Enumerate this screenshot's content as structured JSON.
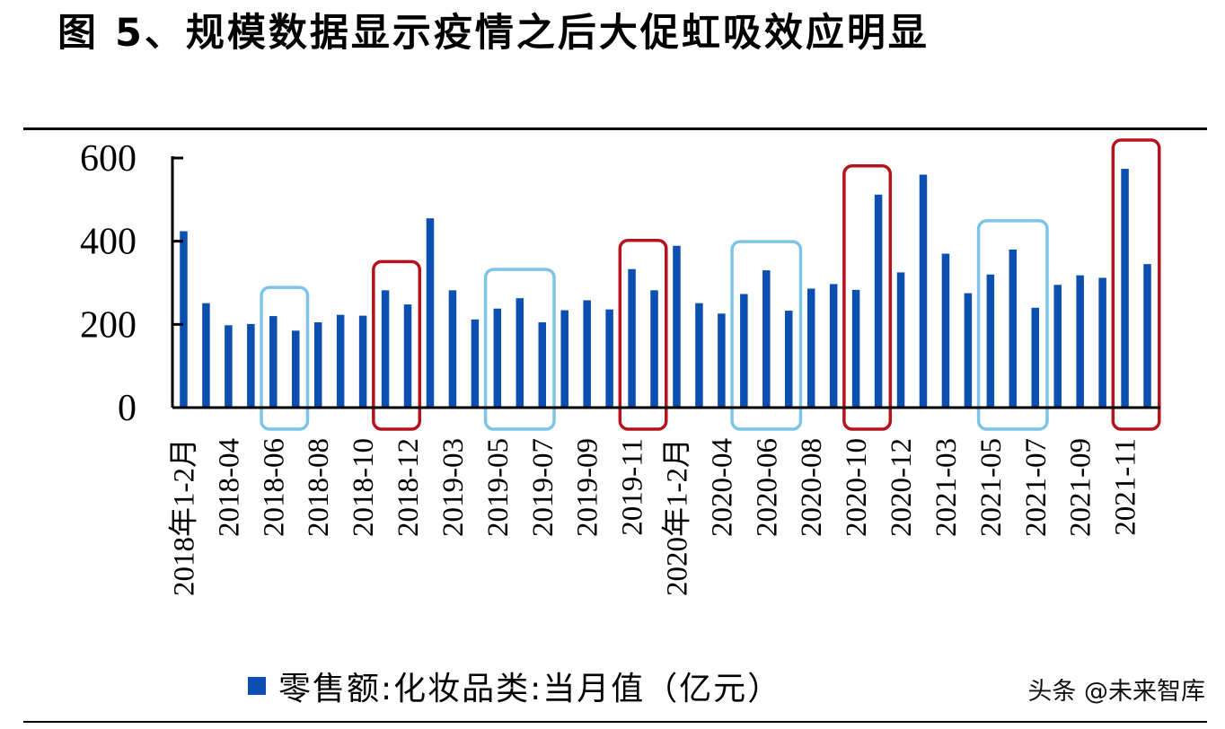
{
  "title": "图 5、规模数据显示疫情之后大促虹吸效应明显",
  "watermark": "头条 @未来智库",
  "colors": {
    "bar": "#0b4fb0",
    "promo_box": "#b5121b",
    "midyear_box": "#7dc4e8",
    "axis": "#000000"
  },
  "chart_data": {
    "type": "bar",
    "title": "",
    "xlabel": "",
    "ylabel": "",
    "ylim": [
      0,
      600
    ],
    "yticks": [
      "0",
      "200",
      "400",
      "600"
    ],
    "grid": false,
    "legend": "bottom",
    "categories": [
      "2018年1-2月",
      "2018-03",
      "2018-04",
      "2018-05",
      "2018-06",
      "2018-07",
      "2018-08",
      "2018-09",
      "2018-10",
      "2018-11",
      "2018-12",
      "2019年1-2月",
      "2019-03",
      "2019-04",
      "2019-05",
      "2019-06",
      "2019-07",
      "2019-08",
      "2019-09",
      "2019-10",
      "2019-11",
      "2019-12",
      "2020年1-2月",
      "2020-03",
      "2020-04",
      "2020-05",
      "2020-06",
      "2020-07",
      "2020-08",
      "2020-09",
      "2020-10",
      "2020-11",
      "2020-12",
      "2021年1-2月",
      "2021-03",
      "2021-04",
      "2021-05",
      "2021-06",
      "2021-07",
      "2021-08",
      "2021-09",
      "2021-10",
      "2021-11",
      "2021-12"
    ],
    "xtick_labels": [
      "2018年1-2月",
      "2018-04",
      "2018-06",
      "2018-08",
      "2018-10",
      "2018-12",
      "2019-03",
      "2019-05",
      "2019-07",
      "2019-09",
      "2019-11",
      "2020年1-2月",
      "2020-04",
      "2020-06",
      "2020-08",
      "2020-10",
      "2020-12",
      "2021-03",
      "2021-05",
      "2021-07",
      "2021-09",
      "2021-11"
    ],
    "series": [
      {
        "name": "零售额:化妆品类:当月值（亿元）",
        "values": [
          424,
          251,
          198,
          201,
          220,
          185,
          205,
          223,
          221,
          282,
          248,
          455,
          282,
          212,
          238,
          263,
          205,
          234,
          258,
          236,
          333,
          282,
          389,
          251,
          226,
          273,
          330,
          233,
          286,
          297,
          283,
          512,
          325,
          560,
          370,
          275,
          320,
          380,
          240,
          295,
          318,
          312,
          574,
          345
        ]
      }
    ],
    "highlight_boxes": [
      {
        "kind": "midyear",
        "from": 4,
        "to": 5
      },
      {
        "kind": "promo",
        "from": 9,
        "to": 10
      },
      {
        "kind": "midyear",
        "from": 14,
        "to": 16
      },
      {
        "kind": "promo",
        "from": 20,
        "to": 21
      },
      {
        "kind": "midyear",
        "from": 25,
        "to": 27
      },
      {
        "kind": "promo",
        "from": 30,
        "to": 31
      },
      {
        "kind": "midyear",
        "from": 36,
        "to": 38
      },
      {
        "kind": "promo",
        "from": 42,
        "to": 43
      }
    ]
  }
}
